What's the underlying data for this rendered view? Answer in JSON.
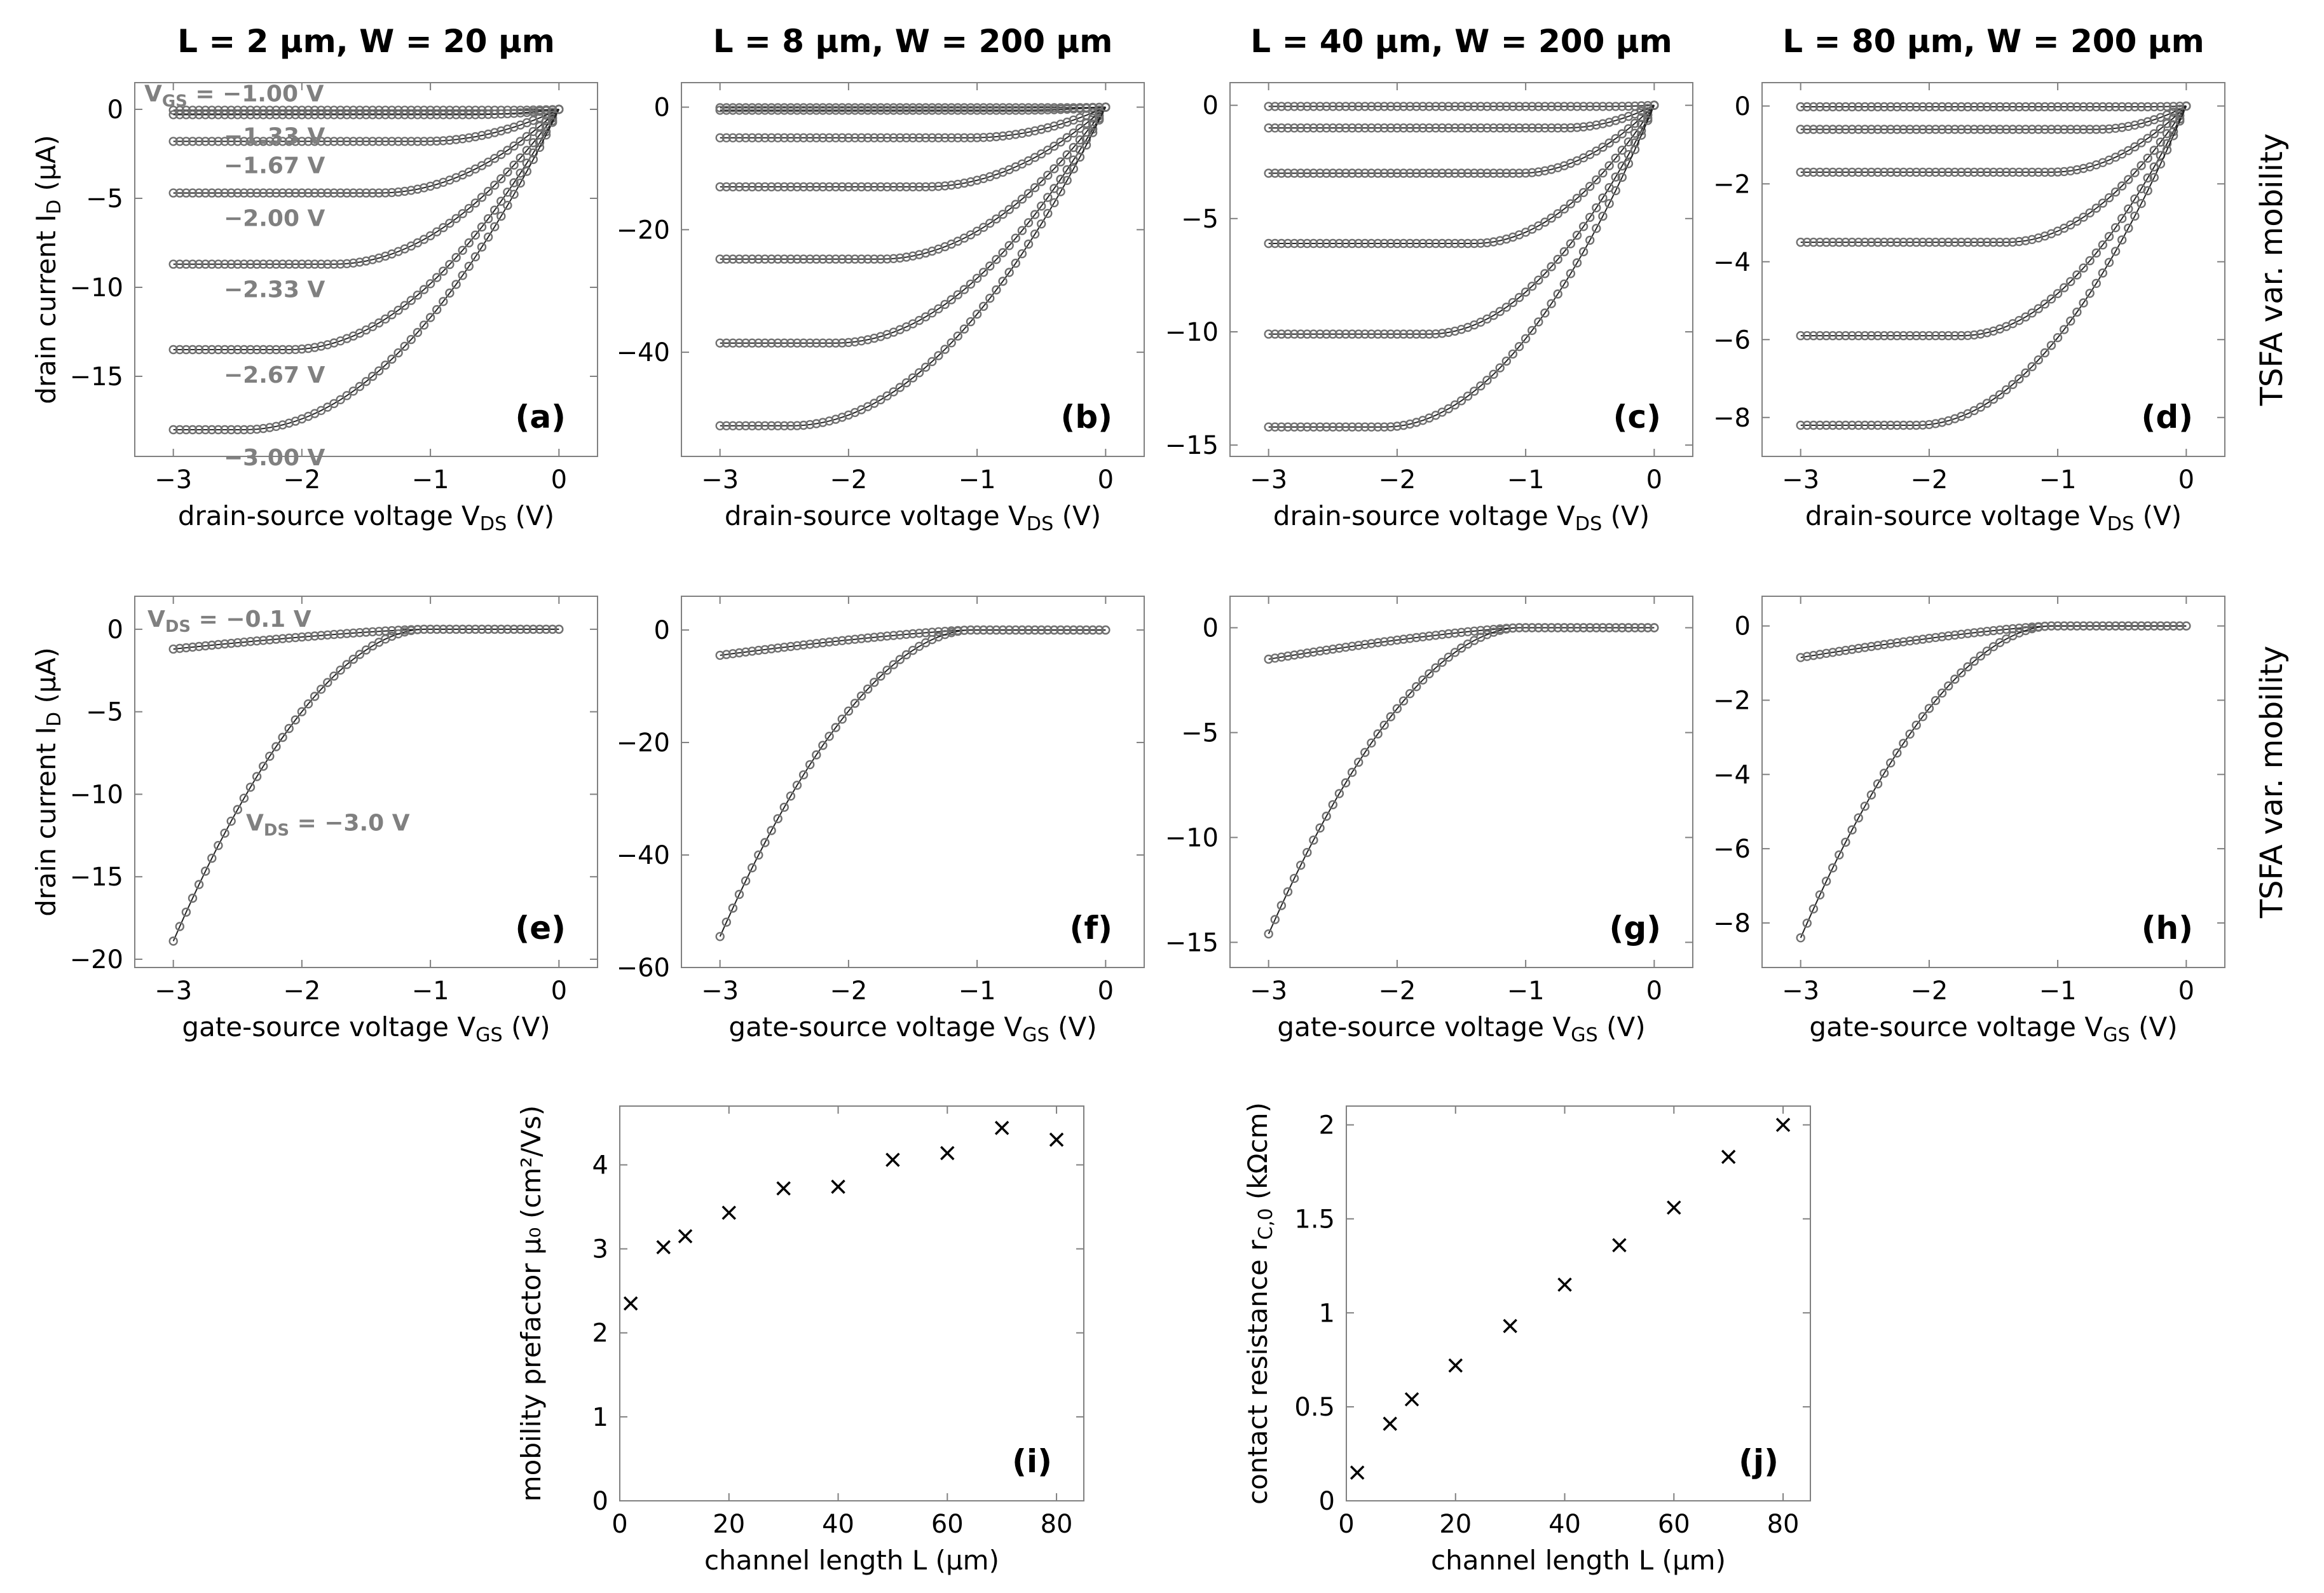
{
  "columns": [
    {
      "title": "L = 2 μm, W = 20 μm"
    },
    {
      "title": "L = 8 μm, W = 200 μm"
    },
    {
      "title": "L = 40 μm, W = 200 μm"
    },
    {
      "title": "L = 80 μm, W = 200 μm"
    }
  ],
  "rows": [
    {
      "side_label": "TSFA var. mobility"
    },
    {
      "side_label": "TSFA var. mobility"
    }
  ],
  "colors": {
    "marker": "#707070",
    "fit": "#222222",
    "frame": "#808080",
    "annotation": "#808080"
  },
  "chart_data": [
    {
      "id": "a",
      "letter": "(a)",
      "type": "line",
      "xlabel": "drain-source voltage V_DS (V)",
      "ylabel": "drain current I_D (μA)",
      "xlim": [
        -3.3,
        0.3
      ],
      "ylim": [
        -19.5,
        1.5
      ],
      "xticks": [
        -3,
        -2,
        -1,
        0
      ],
      "yticks": [
        0,
        -5,
        -10,
        -15
      ],
      "series": [
        {
          "name": "V_GS = −1.00 V",
          "isat": -0.05
        },
        {
          "name": "−1.33 V",
          "isat": -0.3
        },
        {
          "name": "−1.67 V",
          "isat": -1.8
        },
        {
          "name": "−2.00 V",
          "isat": -4.7
        },
        {
          "name": "−2.33 V",
          "isat": -8.7
        },
        {
          "name": "−2.67 V",
          "isat": -13.5
        },
        {
          "name": "−3.00 V",
          "isat": -18.0
        }
      ],
      "annotations": [
        "V_GS = −1.00 V",
        "−1.33 V",
        "−1.67 V",
        "−2.00 V",
        "−2.33 V",
        "−2.67 V",
        "−3.00 V"
      ]
    },
    {
      "id": "b",
      "letter": "(b)",
      "type": "line",
      "xlabel": "drain-source voltage V_DS (V)",
      "ylabel": "",
      "xlim": [
        -3.3,
        0.3
      ],
      "ylim": [
        -57,
        4
      ],
      "xticks": [
        -3,
        -2,
        -1,
        0
      ],
      "yticks": [
        0,
        -20,
        -40
      ],
      "series": [
        {
          "name": "−1.00 V",
          "isat": -0.1
        },
        {
          "name": "−1.33 V",
          "isat": -0.5
        },
        {
          "name": "−1.67 V",
          "isat": -5.0
        },
        {
          "name": "−2.00 V",
          "isat": -13.0
        },
        {
          "name": "−2.33 V",
          "isat": -24.8
        },
        {
          "name": "−2.67 V",
          "isat": -38.5
        },
        {
          "name": "−3.00 V",
          "isat": -52.0
        }
      ]
    },
    {
      "id": "c",
      "letter": "(c)",
      "type": "line",
      "xlabel": "drain-source voltage V_DS (V)",
      "ylabel": "",
      "xlim": [
        -3.3,
        0.3
      ],
      "ylim": [
        -15.5,
        1.0
      ],
      "xticks": [
        -3,
        -2,
        -1,
        0
      ],
      "yticks": [
        0,
        -5,
        -10,
        -15
      ],
      "series": [
        {
          "name": "−1.00 V",
          "isat": -0.05
        },
        {
          "name": "−1.33 V",
          "isat": -1.0
        },
        {
          "name": "−1.67 V",
          "isat": -3.0
        },
        {
          "name": "−2.00 V",
          "isat": -6.1
        },
        {
          "name": "−2.33 V",
          "isat": -10.1
        },
        {
          "name": "−2.67 V",
          "isat": -14.2
        }
      ]
    },
    {
      "id": "d",
      "letter": "(d)",
      "type": "line",
      "xlabel": "drain-source voltage V_DS (V)",
      "ylabel": "",
      "xlim": [
        -3.3,
        0.3
      ],
      "ylim": [
        -9.0,
        0.6
      ],
      "xticks": [
        -3,
        -2,
        -1,
        0
      ],
      "yticks": [
        0,
        -2,
        -4,
        -6,
        -8
      ],
      "series": [
        {
          "name": "−1.00 V",
          "isat": -0.02
        },
        {
          "name": "−1.33 V",
          "isat": -0.6
        },
        {
          "name": "−1.67 V",
          "isat": -1.7
        },
        {
          "name": "−2.00 V",
          "isat": -3.5
        },
        {
          "name": "−2.33 V",
          "isat": -5.9
        },
        {
          "name": "−2.67 V",
          "isat": -8.2
        }
      ]
    },
    {
      "id": "e",
      "letter": "(e)",
      "type": "line",
      "xlabel": "gate-source voltage V_GS (V)",
      "ylabel": "drain current I_D (μA)",
      "xlim": [
        -3.3,
        0.3
      ],
      "ylim": [
        -20.5,
        2.0
      ],
      "xticks": [
        -3,
        -2,
        -1,
        0
      ],
      "yticks": [
        0,
        -5,
        -10,
        -15,
        -20
      ],
      "series": [
        {
          "name": "V_DS = −0.1 V",
          "imin": -1.2
        },
        {
          "name": "V_DS = −3.0 V",
          "imin": -18.9
        }
      ],
      "annotations": [
        "V_DS = −0.1 V",
        "V_DS = −3.0 V"
      ]
    },
    {
      "id": "f",
      "letter": "(f)",
      "type": "line",
      "xlabel": "gate-source voltage V_GS (V)",
      "ylabel": "",
      "xlim": [
        -3.3,
        0.3
      ],
      "ylim": [
        -60,
        6
      ],
      "xticks": [
        -3,
        -2,
        -1,
        0
      ],
      "yticks": [
        0,
        -20,
        -40,
        -60
      ],
      "series": [
        {
          "name": "V_DS = −0.1 V",
          "imin": -4.5
        },
        {
          "name": "V_DS = −3.0 V",
          "imin": -54.5
        }
      ]
    },
    {
      "id": "g",
      "letter": "(g)",
      "type": "line",
      "xlabel": "gate-source voltage V_GS (V)",
      "ylabel": "",
      "xlim": [
        -3.3,
        0.3
      ],
      "ylim": [
        -16.2,
        1.5
      ],
      "xticks": [
        -3,
        -2,
        -1,
        0
      ],
      "yticks": [
        0,
        -5,
        -10,
        -15
      ],
      "series": [
        {
          "name": "V_DS = −0.1 V",
          "imin": -1.5
        },
        {
          "name": "V_DS = −3.0 V",
          "imin": -14.6
        }
      ]
    },
    {
      "id": "h",
      "letter": "(h)",
      "type": "line",
      "xlabel": "gate-source voltage V_GS (V)",
      "ylabel": "",
      "xlim": [
        -3.3,
        0.3
      ],
      "ylim": [
        -9.2,
        0.8
      ],
      "xticks": [
        -3,
        -2,
        -1,
        0
      ],
      "yticks": [
        0,
        -2,
        -4,
        -6,
        -8
      ],
      "series": [
        {
          "name": "V_DS = −0.1 V",
          "imin": -0.85
        },
        {
          "name": "V_DS = −3.0 V",
          "imin": -8.4
        }
      ]
    },
    {
      "id": "i",
      "letter": "(i)",
      "type": "scatter",
      "xlabel": "channel length L (μm)",
      "ylabel": "mobility prefactor μ₀ (cm²/Vs)",
      "xlim": [
        0,
        85
      ],
      "ylim": [
        0,
        4.7
      ],
      "xticks": [
        0,
        20,
        40,
        60,
        80
      ],
      "yticks": [
        0,
        1,
        2,
        3,
        4
      ],
      "x": [
        2,
        8,
        12,
        20,
        30,
        40,
        50,
        60,
        70,
        80
      ],
      "y": [
        2.35,
        3.02,
        3.15,
        3.43,
        3.72,
        3.74,
        4.06,
        4.14,
        4.44,
        4.3
      ]
    },
    {
      "id": "j",
      "letter": "(j)",
      "type": "scatter",
      "xlabel": "channel length L (μm)",
      "ylabel": "contact resistance r_C,0 (kΩcm)",
      "xlim": [
        0,
        85
      ],
      "ylim": [
        0,
        2.1
      ],
      "xticks": [
        0,
        20,
        40,
        60,
        80
      ],
      "yticks": [
        0.0,
        0.5,
        1.0,
        1.5,
        2.0
      ],
      "x": [
        2,
        8,
        12,
        20,
        30,
        40,
        50,
        60,
        70,
        80
      ],
      "y": [
        0.15,
        0.41,
        0.54,
        0.72,
        0.93,
        1.15,
        1.36,
        1.56,
        1.83,
        2.0
      ]
    }
  ]
}
